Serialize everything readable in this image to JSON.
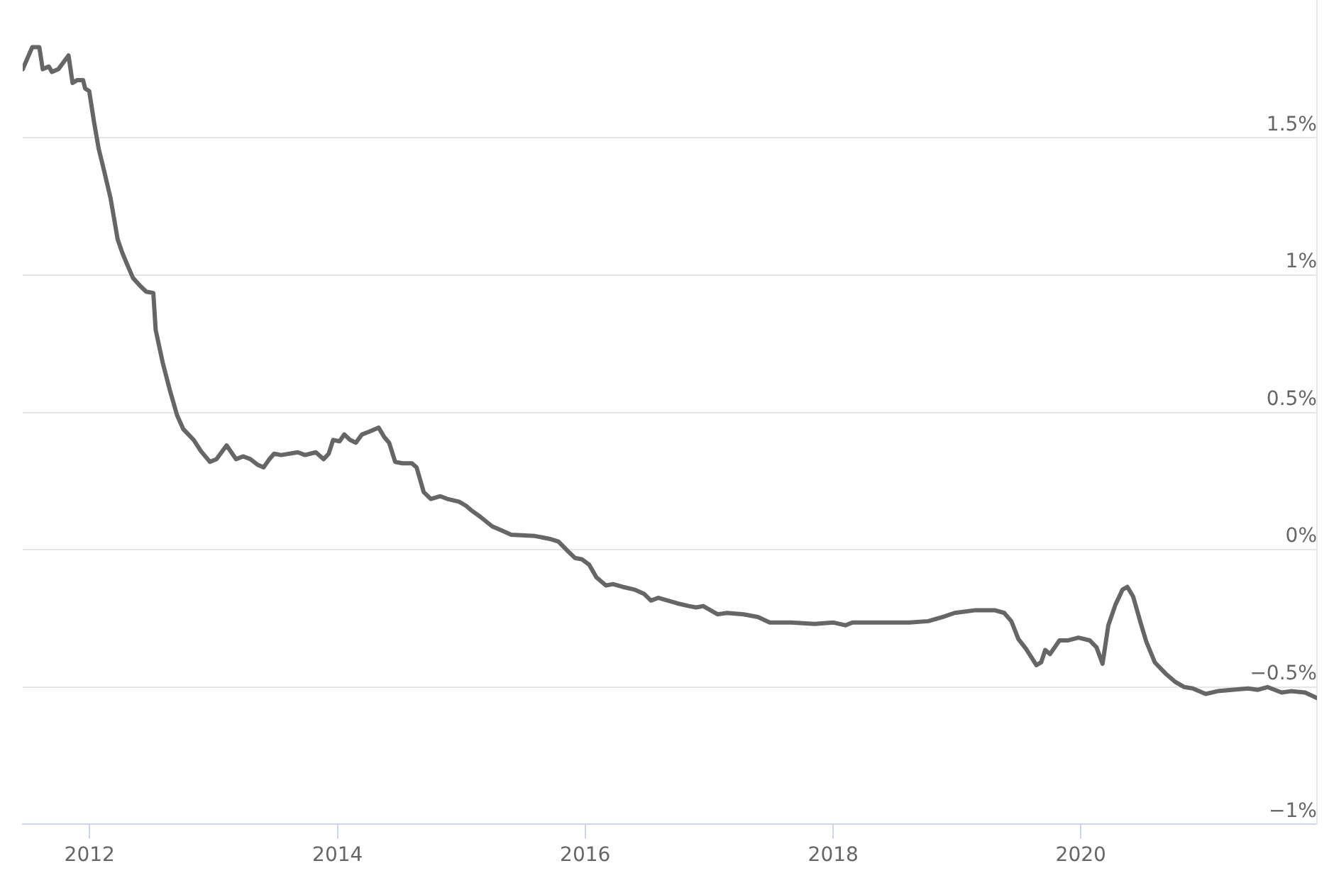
{
  "chart_data": {
    "type": "line",
    "x": [
      "2011-06-18",
      "2011-07-16",
      "2011-08-06",
      "2011-08-16",
      "2011-09-03",
      "2011-09-12",
      "2011-10-01",
      "2011-10-31",
      "2011-11-12",
      "2011-11-25",
      "2011-12-13",
      "2011-12-19",
      "2011-12-31",
      "2012-01-14",
      "2012-01-28",
      "2012-02-11",
      "2012-03-03",
      "2012-03-24",
      "2012-04-07",
      "2012-04-24",
      "2012-05-08",
      "2012-05-30",
      "2012-06-16",
      "2012-07-07",
      "2012-07-14",
      "2012-08-04",
      "2012-08-25",
      "2012-09-15",
      "2012-10-03",
      "2012-11-03",
      "2012-11-24",
      "2012-12-21",
      "2013-01-09",
      "2013-02-08",
      "2013-03-08",
      "2013-03-29",
      "2013-04-19",
      "2013-05-10",
      "2013-05-28",
      "2013-06-14",
      "2013-06-28",
      "2013-07-19",
      "2013-09-06",
      "2013-09-27",
      "2013-10-29",
      "2013-11-21",
      "2013-12-06",
      "2013-12-19",
      "2014-01-07",
      "2014-01-21",
      "2014-02-07",
      "2014-02-24",
      "2014-03-14",
      "2014-04-04",
      "2014-05-02",
      "2014-05-19",
      "2014-06-02",
      "2014-06-20",
      "2014-07-11",
      "2014-08-08",
      "2014-08-22",
      "2014-09-05",
      "2014-09-12",
      "2014-10-03",
      "2014-10-31",
      "2014-11-21",
      "2014-12-25",
      "2015-01-15",
      "2015-01-29",
      "2015-02-26",
      "2015-04-02",
      "2015-04-30",
      "2015-05-28",
      "2015-08-06",
      "2015-09-17",
      "2015-10-14",
      "2015-11-11",
      "2015-12-02",
      "2015-12-23",
      "2016-01-13",
      "2016-02-03",
      "2016-03-02",
      "2016-03-23",
      "2016-04-20",
      "2016-05-25",
      "2016-06-22",
      "2016-07-13",
      "2016-08-03",
      "2016-09-28",
      "2016-11-02",
      "2016-11-23",
      "2016-12-14",
      "2017-01-25",
      "2017-02-22",
      "2017-04-12",
      "2017-05-24",
      "2017-06-28",
      "2017-08-30",
      "2017-11-07",
      "2018-01-02",
      "2018-02-06",
      "2018-02-27",
      "2018-05-22",
      "2018-08-14",
      "2018-10-08",
      "2018-11-19",
      "2018-12-25",
      "2019-02-25",
      "2019-04-22",
      "2019-05-20",
      "2019-06-10",
      "2019-07-01",
      "2019-07-23",
      "2019-08-05",
      "2019-08-23",
      "2019-09-06",
      "2019-09-18",
      "2019-10-02",
      "2019-10-30",
      "2019-11-25",
      "2019-12-25",
      "2020-01-27",
      "2020-02-16",
      "2020-03-05",
      "2020-03-22",
      "2020-04-12",
      "2020-05-03",
      "2020-05-17",
      "2020-06-03",
      "2020-06-25",
      "2020-07-12",
      "2020-08-06",
      "2020-09-06",
      "2020-10-04",
      "2020-11-01",
      "2020-11-26",
      "2021-01-03",
      "2021-02-07",
      "2021-03-21",
      "2021-05-08",
      "2021-06-06",
      "2021-07-04",
      "2021-08-15",
      "2021-09-11",
      "2021-10-23",
      "2021-11-27"
    ],
    "values": [
      1.75,
      1.83,
      1.83,
      1.75,
      1.76,
      1.74,
      1.75,
      1.8,
      1.7,
      1.71,
      1.71,
      1.68,
      1.67,
      1.56,
      1.46,
      1.39,
      1.28,
      1.13,
      1.08,
      1.03,
      0.99,
      0.96,
      0.94,
      0.935,
      0.8,
      0.68,
      0.58,
      0.49,
      0.44,
      0.4,
      0.36,
      0.32,
      0.33,
      0.38,
      0.33,
      0.34,
      0.33,
      0.31,
      0.3,
      0.33,
      0.35,
      0.345,
      0.355,
      0.345,
      0.355,
      0.33,
      0.35,
      0.4,
      0.395,
      0.42,
      0.4,
      0.39,
      0.42,
      0.43,
      0.445,
      0.41,
      0.39,
      0.32,
      0.315,
      0.315,
      0.3,
      0.24,
      0.21,
      0.185,
      0.195,
      0.185,
      0.175,
      0.16,
      0.145,
      0.12,
      0.085,
      0.07,
      0.055,
      0.05,
      0.04,
      0.03,
      -0.005,
      -0.03,
      -0.035,
      -0.055,
      -0.1,
      -0.13,
      -0.125,
      -0.135,
      -0.145,
      -0.16,
      -0.185,
      -0.175,
      -0.195,
      -0.205,
      -0.21,
      -0.205,
      -0.235,
      -0.23,
      -0.235,
      -0.245,
      -0.265,
      -0.265,
      -0.27,
      -0.265,
      -0.275,
      -0.265,
      -0.265,
      -0.265,
      -0.26,
      -0.245,
      -0.23,
      -0.22,
      -0.22,
      -0.23,
      -0.26,
      -0.325,
      -0.36,
      -0.385,
      -0.42,
      -0.41,
      -0.365,
      -0.38,
      -0.33,
      -0.33,
      -0.32,
      -0.33,
      -0.355,
      -0.415,
      -0.275,
      -0.2,
      -0.145,
      -0.135,
      -0.17,
      -0.265,
      -0.335,
      -0.41,
      -0.45,
      -0.48,
      -0.5,
      -0.505,
      -0.525,
      -0.515,
      -0.51,
      -0.505,
      -0.51,
      -0.5,
      -0.52,
      -0.515,
      -0.52,
      -0.54
    ],
    "color": "#666666",
    "xlim": [
      "2011-06-18",
      "2021-11-27"
    ],
    "ylim": [
      -1,
      2
    ],
    "xticks": [
      "2012",
      "2014",
      "2016",
      "2018",
      "2020"
    ],
    "yticks": [
      {
        "value": -1,
        "label": "−1%"
      },
      {
        "value": -0.5,
        "label": "−0.5%"
      },
      {
        "value": 0,
        "label": "0%"
      },
      {
        "value": 0.5,
        "label": "0.5%"
      },
      {
        "value": 1,
        "label": "1%"
      },
      {
        "value": 1.5,
        "label": "1.5%"
      }
    ],
    "grid": "y"
  }
}
